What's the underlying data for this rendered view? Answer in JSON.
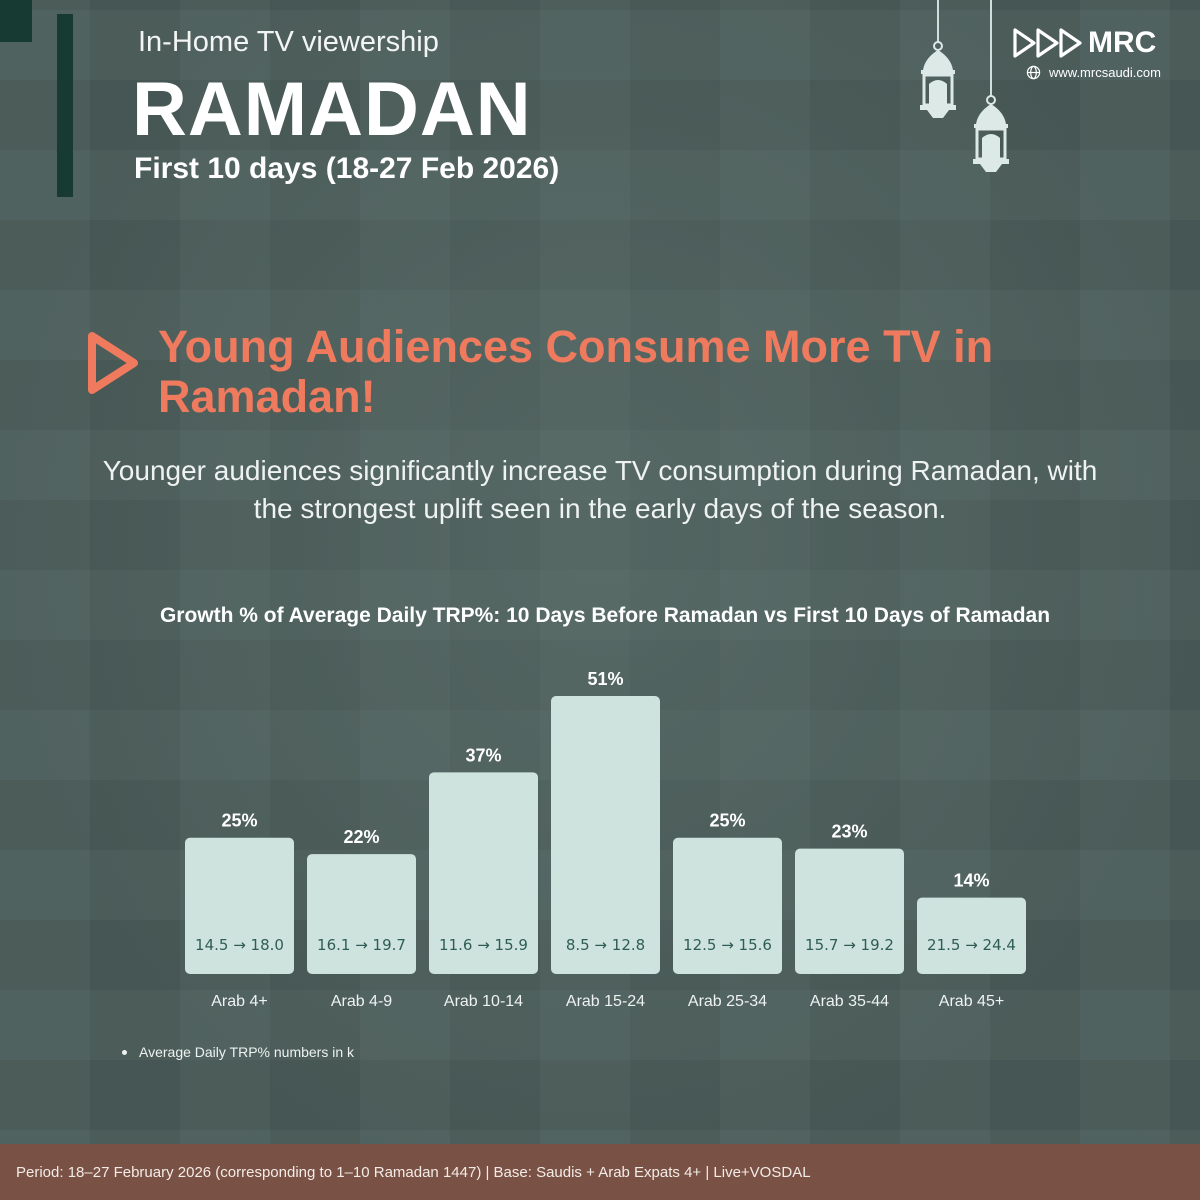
{
  "header": {
    "subtitle": "In-Home TV viewership",
    "title": "RAMADAN",
    "dates": "First 10 days (18-27 Feb 2026)"
  },
  "brand": {
    "logo_text": "MRC",
    "website": "www.mrcsaudi.com",
    "icons": [
      "play-triple-logo-icon",
      "globe-icon",
      "lantern-icon"
    ]
  },
  "headline": {
    "text": "Young Audiences Consume More TV in Ramadan!"
  },
  "description": "Younger audiences significantly increase TV consumption during Ramadan, with the strongest uplift seen in the early days of the season.",
  "chart_data": {
    "type": "bar",
    "title": "Growth % of Average Daily TRP%: 10 Days Before Ramadan vs First 10 Days of Ramadan",
    "categories": [
      "Arab 4+",
      "Arab 4-9",
      "Arab 10-14",
      "Arab 15-24",
      "Arab 25-34",
      "Arab 35-44",
      "Arab 45+"
    ],
    "values": [
      25,
      22,
      37,
      51,
      25,
      23,
      14
    ],
    "value_labels": [
      "25%",
      "22%",
      "37%",
      "51%",
      "25%",
      "23%",
      "14%"
    ],
    "inner_labels": [
      "14.5 → 18.0",
      "16.1 → 19.7",
      "11.6 → 15.9",
      "8.5 → 12.8",
      "12.5 → 15.6",
      "15.7 → 19.2",
      "21.5 → 24.4"
    ],
    "ylim": [
      0,
      51
    ],
    "grid": false,
    "bar_color": "#cfe3de",
    "label_color": "#ffffff",
    "inner_label_color": "#2f5d55"
  },
  "note": "Average Daily TRP% numbers in k",
  "footer": "Period: 18–27 February 2026 (corresponding to 1–10 Ramadan 1447) | Base: Saudis + Arab Expats 4+ | Live+VOSDAL",
  "colors": {
    "background": "#4a5c59",
    "accent": "#ef7a5e",
    "dark_green": "#173a33",
    "footer": "#7a5245"
  }
}
